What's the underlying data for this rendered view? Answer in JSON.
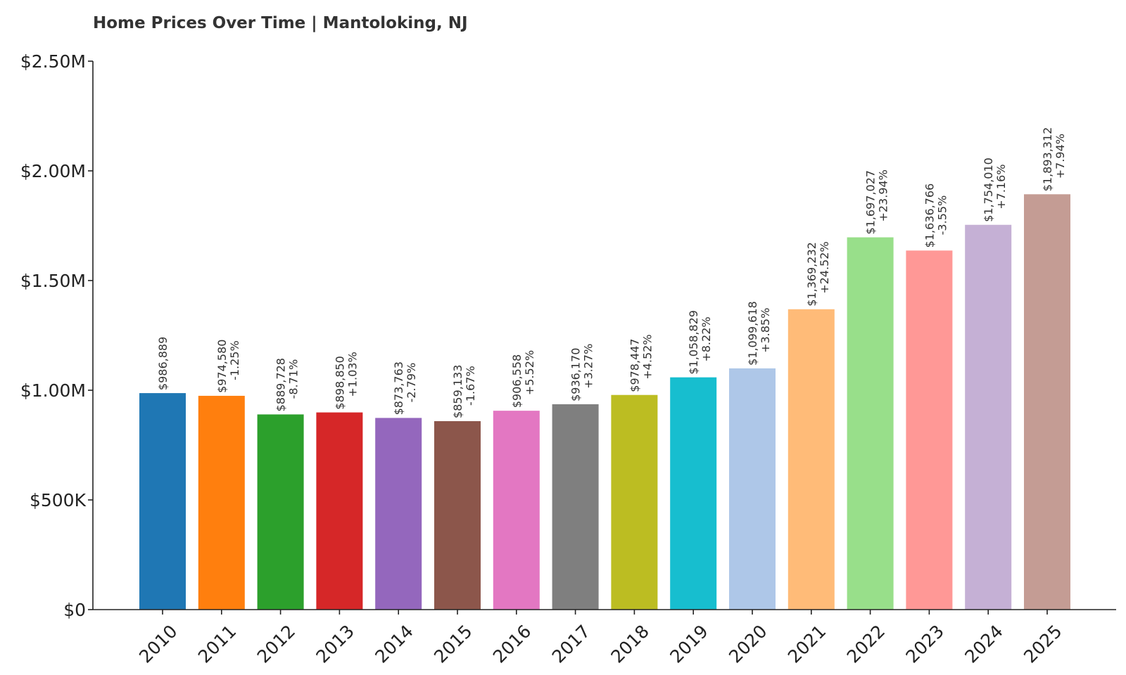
{
  "chart_data": {
    "type": "bar",
    "title": "Home Prices Over Time | Mantoloking, NJ",
    "xlabel": "",
    "ylabel": "",
    "ylim": [
      0,
      2500000
    ],
    "yticks": [
      {
        "value": 0,
        "label": "$0"
      },
      {
        "value": 500000,
        "label": "$500K"
      },
      {
        "value": 1000000,
        "label": "$1.00M"
      },
      {
        "value": 1500000,
        "label": "$1.50M"
      },
      {
        "value": 2000000,
        "label": "$2.00M"
      },
      {
        "value": 2500000,
        "label": "$2.50M"
      }
    ],
    "categories": [
      "2010",
      "2011",
      "2012",
      "2013",
      "2014",
      "2015",
      "2016",
      "2017",
      "2018",
      "2019",
      "2020",
      "2021",
      "2022",
      "2023",
      "2024",
      "2025"
    ],
    "values": [
      986889,
      974580,
      889728,
      898850,
      873763,
      859133,
      906558,
      936170,
      978447,
      1058829,
      1099618,
      1369232,
      1697027,
      1636766,
      1754010,
      1893312
    ],
    "value_labels": [
      "$986,889",
      "$974,580",
      "$889,728",
      "$898,850",
      "$873,763",
      "$859,133",
      "$906,558",
      "$936,170",
      "$978,447",
      "$1,058,829",
      "$1,099,618",
      "$1,369,232",
      "$1,697,027",
      "$1,636,766",
      "$1,754,010",
      "$1,893,312"
    ],
    "change_labels": [
      "",
      "-1.25%",
      "-8.71%",
      "+1.03%",
      "-2.79%",
      "-1.67%",
      "+5.52%",
      "+3.27%",
      "+4.52%",
      "+8.22%",
      "+3.85%",
      "+24.52%",
      "+23.94%",
      "-3.55%",
      "+7.16%",
      "+7.94%"
    ],
    "colors": [
      "#1f77b4",
      "#ff7f0e",
      "#2ca02c",
      "#d62728",
      "#9467bd",
      "#8c564b",
      "#e377c2",
      "#7f7f7f",
      "#bcbd22",
      "#17becf",
      "#aec7e8",
      "#ffbb78",
      "#98df8a",
      "#ff9896",
      "#c5b0d5",
      "#c49c94"
    ],
    "grid": false,
    "legend": "none"
  }
}
